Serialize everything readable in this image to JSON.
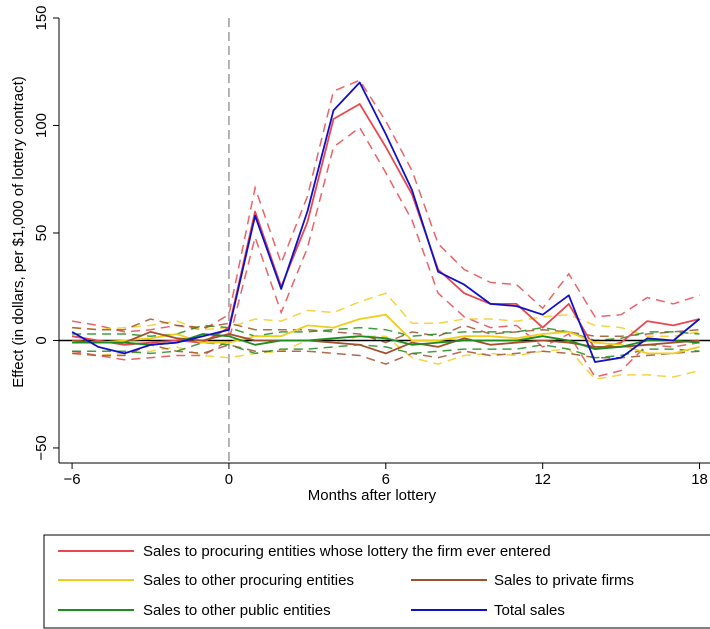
{
  "chart_data": {
    "type": "line",
    "title": "",
    "xlabel": "Months after lottery",
    "ylabel": "Effect (in dollars, per $1,000 of lottery contract)",
    "xlim": [
      -6.5,
      18.4
    ],
    "ylim": [
      -57,
      150
    ],
    "x_ticks": [
      -6,
      0,
      6,
      12,
      18
    ],
    "y_ticks": [
      -50,
      0,
      50,
      100,
      150
    ],
    "x_tick_labels": [
      "−6",
      "0",
      "6",
      "12",
      "18"
    ],
    "y_tick_labels": [
      "−50",
      "0",
      "50",
      "100",
      "150"
    ],
    "zero_line": true,
    "vertical_reference_x": 0,
    "grid": false,
    "legend_position": "bottom",
    "x": [
      -6,
      -5,
      -4,
      -3,
      -2,
      -1,
      0,
      1,
      2,
      3,
      4,
      5,
      6,
      7,
      8,
      9,
      10,
      11,
      12,
      13,
      14,
      15,
      16,
      17,
      18
    ],
    "series": [
      {
        "name": "Sales to procuring entities whose lottery the firm ever entered",
        "color": "#e8484f",
        "values": [
          2,
          0,
          -2,
          -1,
          0,
          -1,
          6,
          60,
          25,
          55,
          103,
          110,
          90,
          68,
          33,
          22,
          17,
          17,
          6,
          17,
          -4,
          -1,
          9,
          7,
          10
        ],
        "ci_upper": [
          9,
          7,
          4,
          5,
          7,
          5,
          12,
          71,
          36,
          67,
          116,
          121,
          102,
          79,
          45,
          33,
          27,
          26,
          15,
          31,
          11,
          12,
          20,
          17,
          21
        ],
        "ci_lower": [
          -5,
          -7,
          -9,
          -8,
          -7,
          -7,
          0,
          48,
          13,
          43,
          90,
          99,
          78,
          56,
          22,
          11,
          6,
          7,
          -3,
          3,
          -17,
          -14,
          -2,
          -3,
          -1
        ]
      },
      {
        "name": "Sales to other procuring entities",
        "color": "#f2cc1e",
        "values": [
          0,
          -1,
          0,
          1,
          3,
          -1,
          -1,
          2,
          2,
          7,
          6,
          10,
          12,
          0,
          0,
          2,
          2,
          1,
          3,
          4,
          -1,
          -2,
          -6,
          -6,
          -3
        ],
        "ci_upper": [
          6,
          5,
          6,
          7,
          9,
          5,
          6,
          10,
          9,
          14,
          13,
          18,
          22,
          8,
          8,
          10,
          10,
          9,
          11,
          12,
          7,
          6,
          2,
          2,
          4
        ],
        "ci_lower": [
          -6,
          -7,
          -6,
          -5,
          -3,
          -7,
          -8,
          -6,
          -5,
          0,
          -1,
          2,
          2,
          -8,
          -11,
          -7,
          -6,
          -7,
          -5,
          -4,
          -18,
          -16,
          -16,
          -17,
          -14
        ]
      },
      {
        "name": "Sales to private firms",
        "color": "#a0522d",
        "values": [
          0,
          -1,
          -1,
          4,
          1,
          0,
          3,
          0,
          0,
          0,
          -1,
          -2,
          -6,
          -1,
          -3,
          1,
          -2,
          -1,
          0,
          -1,
          -3,
          -3,
          -2,
          -1,
          0
        ],
        "ci_upper": [
          6,
          5,
          5,
          10,
          7,
          6,
          8,
          5,
          5,
          5,
          4,
          3,
          -1,
          4,
          2,
          7,
          3,
          4,
          5,
          4,
          2,
          2,
          3,
          4,
          5
        ],
        "ci_lower": [
          -6,
          -7,
          -7,
          -2,
          -5,
          -6,
          -2,
          -5,
          -5,
          -5,
          -6,
          -7,
          -11,
          -6,
          -8,
          -5,
          -7,
          -6,
          -5,
          -6,
          -8,
          -8,
          -7,
          -6,
          -5
        ]
      },
      {
        "name": "Sales to other public entities",
        "color": "#1e8c1e",
        "values": [
          -1,
          -1,
          -1,
          -2,
          -1,
          3,
          2,
          -2,
          0,
          0,
          1,
          2,
          1,
          -2,
          -1,
          0,
          0,
          0,
          2,
          0,
          -4,
          -3,
          0,
          0,
          -1
        ],
        "ci_upper": [
          3,
          3,
          3,
          2,
          3,
          7,
          6,
          2,
          4,
          4,
          5,
          6,
          5,
          2,
          3,
          4,
          4,
          4,
          6,
          4,
          0,
          1,
          4,
          4,
          3
        ],
        "ci_lower": [
          -5,
          -5,
          -5,
          -6,
          -5,
          -1,
          -2,
          -6,
          -4,
          -4,
          -3,
          -2,
          -3,
          -6,
          -5,
          -4,
          -4,
          -4,
          -2,
          -4,
          -8,
          -7,
          -4,
          -4,
          -5
        ]
      },
      {
        "name": "Total sales",
        "color": "#1010c8",
        "values": [
          4,
          -3,
          -6,
          -2,
          -1,
          2,
          5,
          58,
          24,
          60,
          107,
          120,
          96,
          70,
          32,
          26,
          17,
          16,
          12,
          21,
          -10,
          -8,
          1,
          0,
          10
        ]
      }
    ]
  }
}
